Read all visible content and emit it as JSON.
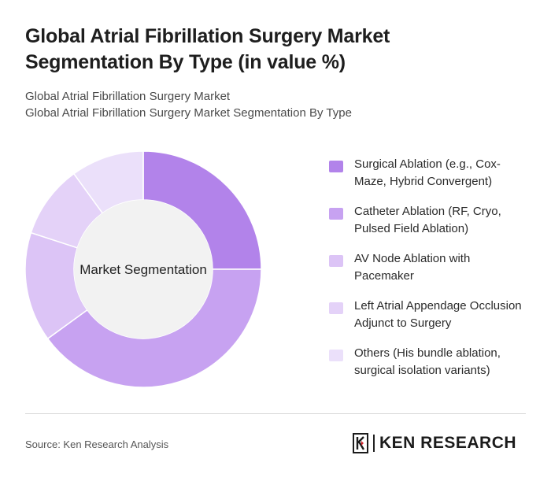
{
  "title": "Global Atrial Fibrillation Surgery Market Segmentation By Type (in value %)",
  "subtitle_1": "Global Atrial Fibrillation Surgery Market",
  "subtitle_2": "Global Atrial Fibrillation Surgery Market Segmentation By Type",
  "source": "Source: Ken Research Analysis",
  "logo": {
    "text": "KEN RESEARCH",
    "icon": "ken-research-k-logo"
  },
  "chart_data": {
    "type": "pie",
    "donut": true,
    "center_label": "Market Segmentation",
    "legend_position": "right",
    "categories": [
      "Surgical Ablation (e.g., Cox-Maze, Hybrid Convergent)",
      "Catheter Ablation (RF, Cryo, Pulsed Field Ablation)",
      "AV Node Ablation with Pacemaker",
      "Left Atrial Appendage Occlusion Adjunct to Surgery",
      "Others (His bundle ablation, surgical isolation variants)"
    ],
    "values": [
      25,
      40,
      15,
      10,
      10
    ],
    "colors": [
      "#b283ea",
      "#c7a2f1",
      "#dcc4f6",
      "#e4d2f8",
      "#ebe0fa"
    ]
  }
}
